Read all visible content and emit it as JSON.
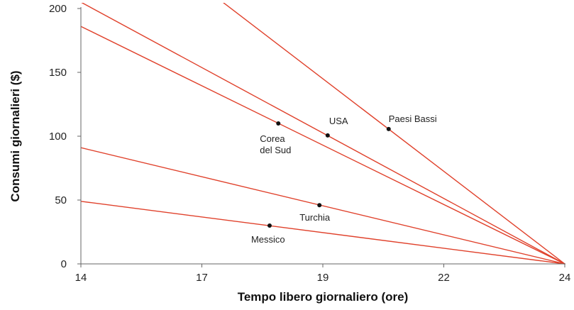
{
  "chart_data": {
    "type": "line",
    "title": "",
    "xlabel": "Tempo libero giornaliero (ore)",
    "ylabel": "Consumi giornalieri ($)",
    "xlim": [
      14,
      24
    ],
    "ylim": [
      0,
      200
    ],
    "x_ticks": [
      "14",
      "17",
      "19",
      "22",
      "24"
    ],
    "y_ticks": [
      0,
      50,
      100,
      150,
      200
    ],
    "grid": false,
    "line_color": "#e0412b",
    "point_color": "#111111",
    "series": [
      {
        "name": "Paesi Bassi",
        "point": [
          20.36,
          105.6
        ],
        "line": [
          [
            14,
            290
          ],
          [
            24,
            0
          ]
        ]
      },
      {
        "name": "USA",
        "point": [
          19.1,
          100.6
        ],
        "line": [
          [
            14,
            205
          ],
          [
            24,
            0
          ]
        ]
      },
      {
        "name": "Corea del Sud",
        "point": [
          18.08,
          110
        ],
        "line": [
          [
            14,
            186
          ],
          [
            24,
            0
          ]
        ]
      },
      {
        "name": "Turchia",
        "point": [
          18.93,
          46
        ],
        "line": [
          [
            14,
            91
          ],
          [
            24,
            0
          ]
        ]
      },
      {
        "name": "Messico",
        "point": [
          17.9,
          30
        ],
        "line": [
          [
            14,
            49
          ],
          [
            24,
            0
          ]
        ]
      }
    ]
  }
}
